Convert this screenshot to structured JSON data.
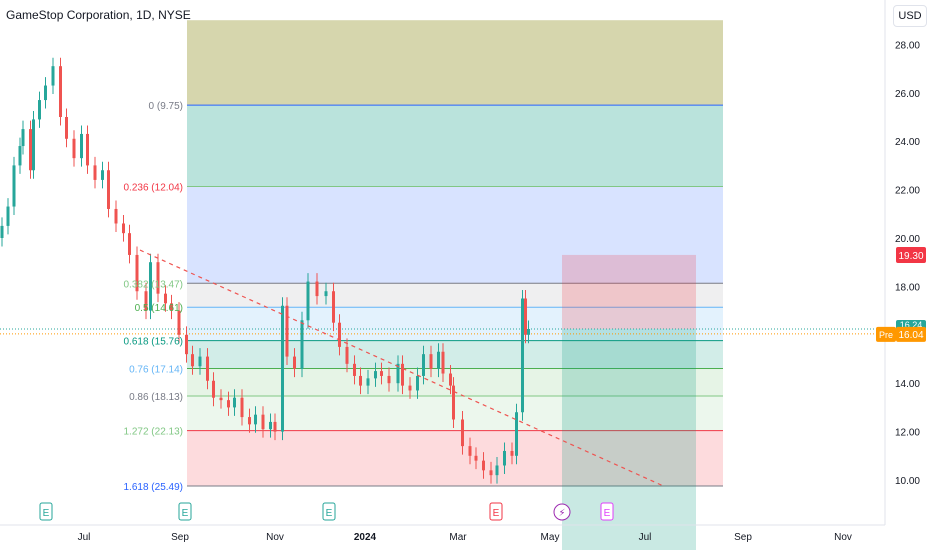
{
  "header": {
    "title": "GameStop Corporation, 1D, NYSE"
  },
  "currency_button": "USD",
  "price_tags": {
    "target": "19.30",
    "current": "16.24",
    "pre_label": "Pre",
    "pre_value": "16.04"
  },
  "earnings_marker_label": "E",
  "dividend_marker_label": "⚡",
  "colors": {
    "up": "#26a69a",
    "down": "#ef5350",
    "trendline": "#ef5350",
    "target_tag": "#f23645",
    "pre_tag": "#ff9800",
    "current_tag": "#26a69a"
  },
  "fib_labels": [
    {
      "text": "1.618 (25.49)",
      "color": "#2962ff"
    },
    {
      "text": "1.272 (22.13)",
      "color": "#81c784"
    },
    {
      "text": "0.86 (18.13)",
      "color": "#787b86"
    },
    {
      "text": "0.76 (17.14)",
      "color": "#64b5f6"
    },
    {
      "text": "0.618 (15.76)",
      "color": "#089981"
    },
    {
      "text": "0.5 (14.61)",
      "color": "#4caf50"
    },
    {
      "text": "0.382 (13.47)",
      "color": "#81c784"
    },
    {
      "text": "0.236 (12.04)",
      "color": "#f23645"
    },
    {
      "text": "0 (9.75)",
      "color": "#787b86"
    }
  ],
  "chart_data": {
    "type": "candlestick",
    "title": "GameStop Corporation, 1D, NYSE",
    "x_ticks": [
      "Jul",
      "Sep",
      "Nov",
      "2024",
      "Mar",
      "May",
      "Jul",
      "Sep",
      "Nov"
    ],
    "y_ticks": [
      "10.00",
      "12.00",
      "14.00",
      "16.00",
      "18.00",
      "20.00",
      "22.00",
      "24.00",
      "26.00",
      "28.00"
    ],
    "ylim": [
      9.0,
      29.0
    ],
    "fib_levels": [
      {
        "ratio": 0,
        "price": 9.75
      },
      {
        "ratio": 0.236,
        "price": 12.04
      },
      {
        "ratio": 0.382,
        "price": 13.47
      },
      {
        "ratio": 0.5,
        "price": 14.61
      },
      {
        "ratio": 0.618,
        "price": 15.76
      },
      {
        "ratio": 0.76,
        "price": 17.14
      },
      {
        "ratio": 0.86,
        "price": 18.13
      },
      {
        "ratio": 1.272,
        "price": 22.13
      },
      {
        "ratio": 1.618,
        "price": 25.49
      }
    ],
    "trendline": {
      "from": {
        "date": "2023-09-01",
        "price": 19.5
      },
      "to": {
        "date": "2024-08-15",
        "price": 9.75
      }
    },
    "position": {
      "entry": 16.24,
      "target": 19.3,
      "stop_visible_below": 9.0
    },
    "earnings_dates": [
      "2023-06-07",
      "2023-09-06",
      "2023-12-06",
      "2024-03-26",
      "2024-06-11"
    ],
    "dividend_dates": [
      "2024-05-07"
    ],
    "last_price": 16.24,
    "premarket_price": 16.04,
    "series": [
      {
        "date": "2023-06-01",
        "close": 20.5
      },
      {
        "date": "2023-06-05",
        "close": 21.3
      },
      {
        "date": "2023-06-09",
        "close": 23.0
      },
      {
        "date": "2023-06-13",
        "close": 23.8
      },
      {
        "date": "2023-06-15",
        "close": 24.5
      },
      {
        "date": "2023-06-20",
        "close": 22.8
      },
      {
        "date": "2023-06-22",
        "close": 24.9
      },
      {
        "date": "2023-06-26",
        "close": 25.7
      },
      {
        "date": "2023-06-30",
        "close": 26.3
      },
      {
        "date": "2023-07-05",
        "close": 27.1
      },
      {
        "date": "2023-07-10",
        "close": 25.0
      },
      {
        "date": "2023-07-14",
        "close": 24.1
      },
      {
        "date": "2023-07-19",
        "close": 23.3
      },
      {
        "date": "2023-07-24",
        "close": 24.3
      },
      {
        "date": "2023-07-28",
        "close": 23.0
      },
      {
        "date": "2023-08-02",
        "close": 22.4
      },
      {
        "date": "2023-08-07",
        "close": 22.8
      },
      {
        "date": "2023-08-11",
        "close": 21.2
      },
      {
        "date": "2023-08-16",
        "close": 20.6
      },
      {
        "date": "2023-08-21",
        "close": 20.2
      },
      {
        "date": "2023-08-25",
        "close": 19.3
      },
      {
        "date": "2023-08-30",
        "close": 17.8
      },
      {
        "date": "2023-09-05",
        "close": 17.0
      },
      {
        "date": "2023-09-08",
        "close": 19.0
      },
      {
        "date": "2023-09-13",
        "close": 17.7
      },
      {
        "date": "2023-09-18",
        "close": 17.3
      },
      {
        "date": "2023-09-22",
        "close": 17.0
      },
      {
        "date": "2023-09-27",
        "close": 16.0
      },
      {
        "date": "2023-10-02",
        "close": 15.2
      },
      {
        "date": "2023-10-06",
        "close": 14.7
      },
      {
        "date": "2023-10-11",
        "close": 15.1
      },
      {
        "date": "2023-10-16",
        "close": 14.1
      },
      {
        "date": "2023-10-20",
        "close": 13.4
      },
      {
        "date": "2023-10-25",
        "close": 13.3
      },
      {
        "date": "2023-10-30",
        "close": 13.0
      },
      {
        "date": "2023-11-03",
        "close": 13.4
      },
      {
        "date": "2023-11-08",
        "close": 12.6
      },
      {
        "date": "2023-11-13",
        "close": 12.3
      },
      {
        "date": "2023-11-17",
        "close": 12.7
      },
      {
        "date": "2023-11-22",
        "close": 12.1
      },
      {
        "date": "2023-11-27",
        "close": 12.4
      },
      {
        "date": "2023-11-30",
        "close": 12.0
      },
      {
        "date": "2023-12-05",
        "close": 17.2
      },
      {
        "date": "2023-12-08",
        "close": 15.1
      },
      {
        "date": "2023-12-13",
        "close": 14.6
      },
      {
        "date": "2023-12-18",
        "close": 16.6
      },
      {
        "date": "2023-12-22",
        "close": 18.2
      },
      {
        "date": "2023-12-28",
        "close": 17.6
      },
      {
        "date": "2024-01-03",
        "close": 17.8
      },
      {
        "date": "2024-01-08",
        "close": 16.5
      },
      {
        "date": "2024-01-12",
        "close": 15.5
      },
      {
        "date": "2024-01-17",
        "close": 14.8
      },
      {
        "date": "2024-01-22",
        "close": 14.3
      },
      {
        "date": "2024-01-26",
        "close": 13.9
      },
      {
        "date": "2024-01-31",
        "close": 14.2
      },
      {
        "date": "2024-02-05",
        "close": 14.5
      },
      {
        "date": "2024-02-09",
        "close": 14.3
      },
      {
        "date": "2024-02-14",
        "close": 14.0
      },
      {
        "date": "2024-02-20",
        "close": 14.8
      },
      {
        "date": "2024-02-23",
        "close": 13.9
      },
      {
        "date": "2024-02-28",
        "close": 13.7
      },
      {
        "date": "2024-03-04",
        "close": 14.3
      },
      {
        "date": "2024-03-08",
        "close": 15.2
      },
      {
        "date": "2024-03-13",
        "close": 14.6
      },
      {
        "date": "2024-03-18",
        "close": 15.3
      },
      {
        "date": "2024-03-21",
        "close": 14.4
      },
      {
        "date": "2024-03-26",
        "close": 13.9
      },
      {
        "date": "2024-03-28",
        "close": 12.5
      },
      {
        "date": "2024-04-03",
        "close": 11.4
      },
      {
        "date": "2024-04-08",
        "close": 11.0
      },
      {
        "date": "2024-04-12",
        "close": 10.8
      },
      {
        "date": "2024-04-17",
        "close": 10.4
      },
      {
        "date": "2024-04-22",
        "close": 10.2
      },
      {
        "date": "2024-04-26",
        "close": 10.6
      },
      {
        "date": "2024-05-01",
        "close": 11.2
      },
      {
        "date": "2024-05-06",
        "close": 11.0
      },
      {
        "date": "2024-05-09",
        "close": 12.8
      },
      {
        "date": "2024-05-13",
        "close": 17.5
      },
      {
        "date": "2024-05-15",
        "close": 16.0
      },
      {
        "date": "2024-05-17",
        "close": 16.24
      }
    ]
  }
}
